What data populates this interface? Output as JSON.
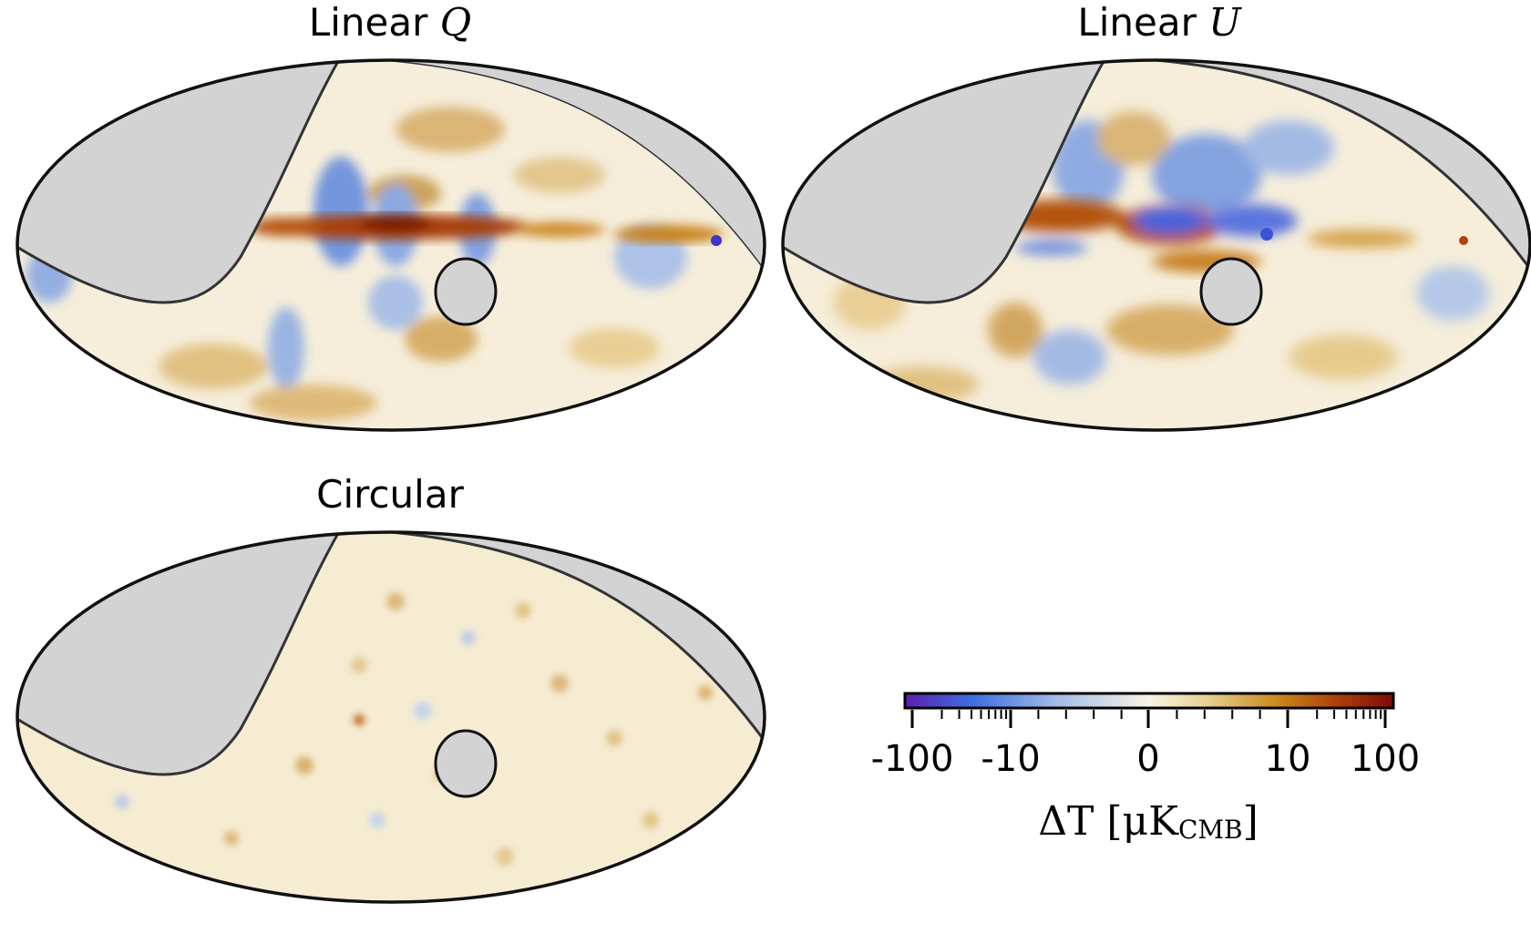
{
  "panels": [
    {
      "id": "q",
      "title_text": "Linear ",
      "title_var": "Q"
    },
    {
      "id": "u",
      "title_text": "Linear ",
      "title_var": "U"
    },
    {
      "id": "c",
      "title_text": "Circular",
      "title_var": ""
    }
  ],
  "colorbar": {
    "tick_labels": [
      "-100",
      "-10",
      "0",
      "10",
      "100"
    ],
    "label_main": "ΔT [μK",
    "label_sub": "CMB",
    "label_close": "]",
    "colors": [
      "#5b1fb0",
      "#3d6fe0",
      "#a7bfe6",
      "#f7f3e6",
      "#e6cf8e",
      "#c98a1c",
      "#b0420a",
      "#7c0a0a"
    ]
  },
  "colors": {
    "mask": "#d3d3d3",
    "background_field": "#f6eedb",
    "outline": "#111111"
  }
}
